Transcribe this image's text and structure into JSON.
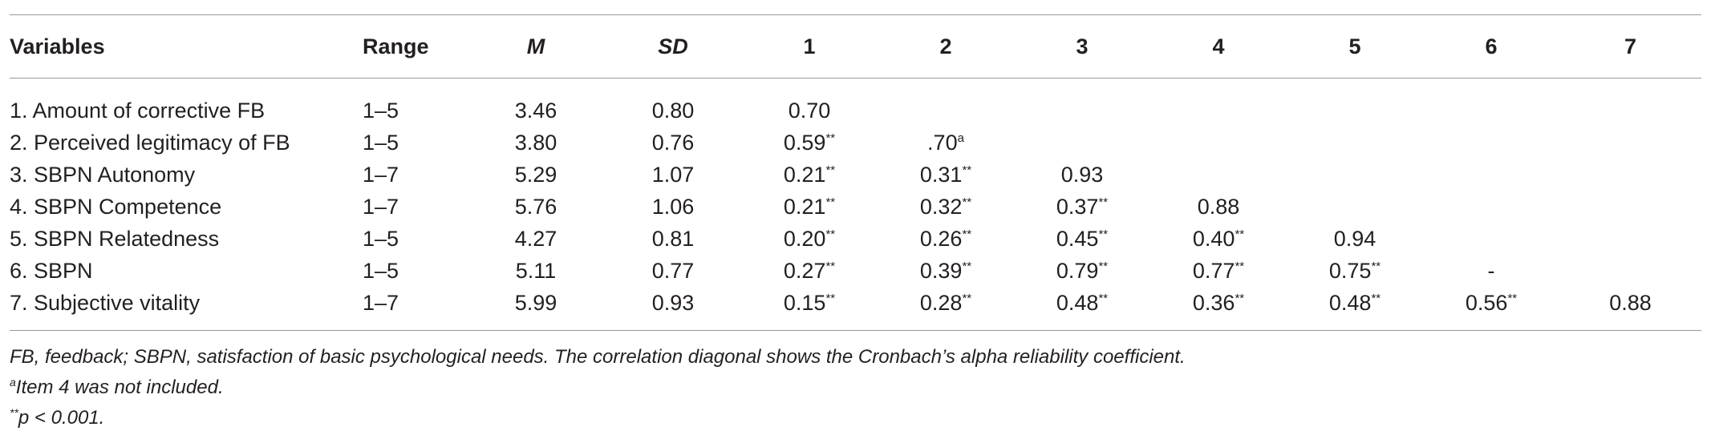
{
  "table": {
    "headers": {
      "variables": "Variables",
      "range": "Range",
      "m": "M",
      "sd": "SD",
      "c1": "1",
      "c2": "2",
      "c3": "3",
      "c4": "4",
      "c5": "5",
      "c6": "6",
      "c7": "7"
    },
    "rows": [
      {
        "label": "1. Amount of corrective FB",
        "range": "1–5",
        "m": "3.46",
        "sd": "0.80",
        "c1": "0.70",
        "c1s": "",
        "c2": "",
        "c2s": "",
        "c3": "",
        "c3s": "",
        "c4": "",
        "c4s": "",
        "c5": "",
        "c5s": "",
        "c6": "",
        "c6s": "",
        "c7": "",
        "c7s": ""
      },
      {
        "label": "2. Perceived legitimacy of FB",
        "range": "1–5",
        "m": "3.80",
        "sd": "0.76",
        "c1": "0.59",
        "c1s": "**",
        "c2": ".70",
        "c2s": "a",
        "c3": "",
        "c3s": "",
        "c4": "",
        "c4s": "",
        "c5": "",
        "c5s": "",
        "c6": "",
        "c6s": "",
        "c7": "",
        "c7s": ""
      },
      {
        "label": "3. SBPN Autonomy",
        "range": "1–7",
        "m": "5.29",
        "sd": "1.07",
        "c1": "0.21",
        "c1s": "**",
        "c2": "0.31",
        "c2s": "**",
        "c3": "0.93",
        "c3s": "",
        "c4": "",
        "c4s": "",
        "c5": "",
        "c5s": "",
        "c6": "",
        "c6s": "",
        "c7": "",
        "c7s": ""
      },
      {
        "label": "4. SBPN Competence",
        "range": "1–7",
        "m": "5.76",
        "sd": "1.06",
        "c1": "0.21",
        "c1s": "**",
        "c2": "0.32",
        "c2s": "**",
        "c3": "0.37",
        "c3s": "**",
        "c4": "0.88",
        "c4s": "",
        "c5": "",
        "c5s": "",
        "c6": "",
        "c6s": "",
        "c7": "",
        "c7s": ""
      },
      {
        "label": "5. SBPN Relatedness",
        "range": "1–5",
        "m": "4.27",
        "sd": "0.81",
        "c1": "0.20",
        "c1s": "**",
        "c2": "0.26",
        "c2s": "**",
        "c3": "0.45",
        "c3s": "**",
        "c4": "0.40",
        "c4s": "**",
        "c5": "0.94",
        "c5s": "",
        "c6": "",
        "c6s": "",
        "c7": "",
        "c7s": ""
      },
      {
        "label": "6. SBPN",
        "range": "1–5",
        "m": "5.11",
        "sd": "0.77",
        "c1": "0.27",
        "c1s": "**",
        "c2": "0.39",
        "c2s": "**",
        "c3": "0.79",
        "c3s": "**",
        "c4": "0.77",
        "c4s": "**",
        "c5": "0.75",
        "c5s": "**",
        "c6": "-",
        "c6s": "",
        "c7": "",
        "c7s": ""
      },
      {
        "label": "7. Subjective vitality",
        "range": "1–7",
        "m": "5.99",
        "sd": "0.93",
        "c1": "0.15",
        "c1s": "**",
        "c2": "0.28",
        "c2s": "**",
        "c3": "0.48",
        "c3s": "**",
        "c4": "0.36",
        "c4s": "**",
        "c5": "0.48",
        "c5s": "**",
        "c6": "0.56",
        "c6s": "**",
        "c7": "0.88",
        "c7s": ""
      }
    ]
  },
  "notes": {
    "line1": "FB, feedback; SBPN, satisfaction of basic psychological needs. The correlation diagonal shows the Cronbach’s alpha reliability coefficient.",
    "line2_sup": "a",
    "line2": "Item 4 was not included.",
    "line3_sup": "**",
    "line3": "p < 0.001."
  }
}
